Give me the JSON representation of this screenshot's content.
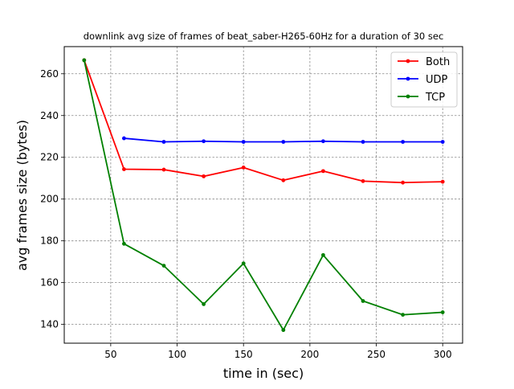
{
  "chart_data": {
    "type": "line",
    "title": "downlink avg size of frames of beat_saber-H265-60Hz for a duration of 30 sec",
    "xlabel": "time in (sec)",
    "ylabel": "avg frames size (bytes)",
    "xlim": [
      15,
      315
    ],
    "ylim": [
      131,
      273
    ],
    "xticks": [
      50,
      100,
      150,
      200,
      250,
      300
    ],
    "yticks": [
      140,
      160,
      180,
      200,
      220,
      240,
      260
    ],
    "grid": true,
    "legend_position": "top-right",
    "series": [
      {
        "name": "Both",
        "color": "#ff0000",
        "x": [
          30,
          60,
          90,
          120,
          150,
          180,
          210,
          240,
          270,
          300
        ],
        "y": [
          266.5,
          214.3,
          214.1,
          210.9,
          215.1,
          209.0,
          213.4,
          208.6,
          207.9,
          208.3
        ]
      },
      {
        "name": "UDP",
        "color": "#0000ff",
        "x": [
          60,
          90,
          120,
          150,
          180,
          210,
          240,
          270,
          300
        ],
        "y": [
          229.1,
          227.4,
          227.7,
          227.4,
          227.4,
          227.7,
          227.4,
          227.4,
          227.4
        ]
      },
      {
        "name": "TCP",
        "color": "#008000",
        "x": [
          30,
          60,
          90,
          120,
          150,
          180,
          210,
          240,
          270,
          300
        ],
        "y": [
          266.5,
          178.6,
          168.1,
          149.7,
          169.2,
          137.3,
          173.2,
          151.2,
          144.6,
          145.8
        ]
      }
    ]
  }
}
